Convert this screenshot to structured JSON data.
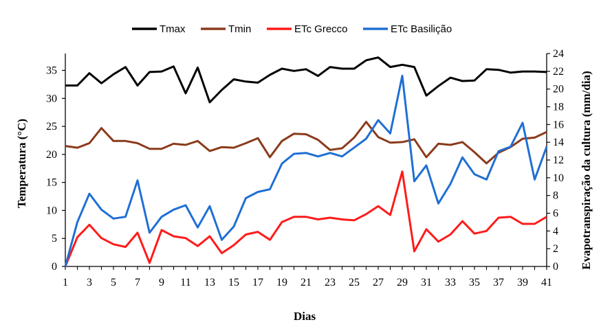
{
  "chart_data": {
    "type": "line",
    "xlabel": "Dias",
    "ylabel_left": "Temperatura (°C)",
    "ylabel_right": "Evapotranspiração da cultura (mm/dia)",
    "x_ticks": [
      "1",
      "3",
      "5",
      "7",
      "9",
      "11",
      "13",
      "15",
      "17",
      "19",
      "21",
      "23",
      "25",
      "27",
      "29",
      "31",
      "33",
      "35",
      "37",
      "39",
      "41"
    ],
    "x": [
      1,
      2,
      3,
      4,
      5,
      6,
      7,
      8,
      9,
      10,
      11,
      12,
      13,
      14,
      15,
      16,
      17,
      18,
      19,
      20,
      21,
      22,
      23,
      24,
      25,
      26,
      27,
      28,
      29,
      30,
      31,
      32,
      33,
      34,
      35,
      36,
      37,
      38,
      39,
      40,
      41
    ],
    "xlim": [
      1,
      41
    ],
    "ylim_left": [
      0,
      38
    ],
    "yticks_left": [
      0,
      5,
      10,
      15,
      20,
      25,
      30,
      35
    ],
    "ylim_right": [
      0,
      24
    ],
    "yticks_right": [
      0,
      2,
      4,
      6,
      8,
      10,
      12,
      14,
      16,
      18,
      20,
      22,
      24
    ],
    "legend_position": "top",
    "grid": false,
    "series": [
      {
        "name": "Tmax",
        "axis": "left",
        "color": "#000000",
        "values": [
          32.3,
          32.3,
          34.5,
          32.7,
          34.3,
          35.6,
          32.3,
          34.7,
          34.8,
          35.7,
          30.9,
          35.5,
          29.3,
          31.5,
          33.4,
          33.0,
          32.8,
          34.2,
          35.3,
          34.9,
          35.2,
          34.0,
          35.6,
          35.3,
          35.3,
          36.8,
          37.3,
          35.6,
          36.0,
          35.6,
          30.5,
          32.2,
          33.7,
          33.1,
          33.2,
          35.2,
          35.1,
          34.6,
          34.8,
          34.8,
          34.7
        ]
      },
      {
        "name": "Tmin",
        "axis": "left",
        "color": "#8b3a1a",
        "values": [
          21.5,
          21.2,
          22.0,
          24.7,
          22.4,
          22.4,
          22.0,
          21.0,
          21.0,
          21.9,
          21.7,
          22.4,
          20.6,
          21.3,
          21.2,
          22.0,
          22.9,
          19.5,
          22.4,
          23.7,
          23.6,
          22.6,
          20.8,
          21.1,
          23.0,
          25.8,
          23.1,
          22.1,
          22.2,
          22.7,
          19.5,
          21.9,
          21.7,
          22.2,
          20.4,
          18.4,
          20.3,
          21.3,
          22.8,
          23.0,
          24.0
        ]
      },
      {
        "name": "ETc Grecco",
        "axis": "right",
        "color": "#ff1a1a",
        "values": [
          0.0,
          3.3,
          4.7,
          3.2,
          2.5,
          2.2,
          3.8,
          0.4,
          4.1,
          3.4,
          3.2,
          2.3,
          3.4,
          1.5,
          2.4,
          3.6,
          3.9,
          3.0,
          5.0,
          5.6,
          5.6,
          5.3,
          5.5,
          5.3,
          5.2,
          5.9,
          6.8,
          5.8,
          10.7,
          1.7,
          4.2,
          2.8,
          3.6,
          5.1,
          3.7,
          4.0,
          5.5,
          5.6,
          4.8,
          4.8,
          5.6
        ]
      },
      {
        "name": "ETc Basilição",
        "axis": "right",
        "color": "#1f6fd4",
        "values": [
          0.0,
          5.0,
          8.2,
          6.4,
          5.4,
          5.6,
          9.7,
          3.8,
          5.6,
          6.4,
          6.9,
          4.4,
          6.8,
          3.0,
          4.5,
          7.7,
          8.4,
          8.7,
          11.6,
          12.7,
          12.8,
          12.4,
          12.8,
          12.4,
          13.4,
          14.4,
          16.5,
          15.0,
          21.5,
          9.6,
          11.4,
          7.1,
          9.3,
          12.3,
          10.4,
          9.8,
          13.0,
          13.5,
          16.2,
          9.8,
          13.5
        ]
      }
    ]
  }
}
